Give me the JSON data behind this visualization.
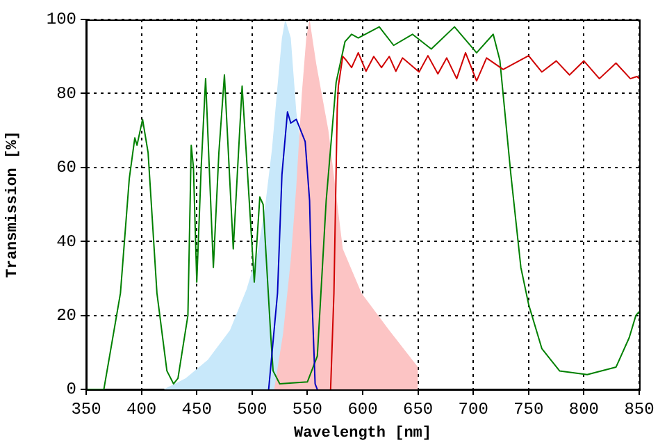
{
  "chart_data": {
    "type": "line",
    "xlabel": "Wavelength [nm]",
    "ylabel": "Transmission [%]",
    "xlim": [
      350,
      850
    ],
    "xticks": [
      350,
      400,
      450,
      500,
      550,
      600,
      650,
      700,
      750,
      800,
      850
    ],
    "ylim": [
      0,
      100
    ],
    "yticks": [
      0,
      20,
      40,
      60,
      80,
      100
    ],
    "grid": true,
    "legend": false,
    "marker": "none",
    "line_style": "solid",
    "series": [
      {
        "type": "area",
        "color": "#c8e8fa",
        "x": [
          420,
          440,
          460,
          480,
          495,
          505,
          512,
          518,
          523,
          527,
          530,
          535,
          540,
          543
        ],
        "values": [
          0,
          3,
          8,
          16,
          27,
          37,
          50,
          65,
          82,
          95,
          100,
          95,
          75,
          68
        ]
      },
      {
        "type": "area",
        "color": "#fcc4c4",
        "x": [
          520,
          528,
          535,
          540,
          545,
          549,
          552,
          558,
          569,
          582,
          599,
          624,
          650
        ],
        "values": [
          0,
          15,
          35,
          55,
          80,
          95,
          100,
          88,
          70,
          38,
          26,
          16,
          6
        ]
      },
      {
        "type": "line",
        "color": "#008000",
        "x": [
          350,
          366,
          381,
          389,
          394,
          396,
          401,
          406,
          414,
          423,
          429,
          433,
          442,
          445,
          447,
          450,
          454,
          458,
          465,
          470,
          475,
          483,
          491,
          502,
          507,
          510,
          517,
          519,
          525,
          550,
          559,
          567,
          576,
          584,
          590,
          596,
          615,
          628,
          645,
          662,
          683,
          703,
          718,
          724,
          734,
          743,
          750,
          762,
          778,
          803,
          829,
          841,
          847,
          850
        ],
        "values": [
          0,
          0,
          26,
          57,
          68,
          66,
          73,
          64,
          26,
          5,
          1.5,
          3,
          20,
          66,
          60,
          29,
          60,
          84,
          33,
          64,
          85,
          38,
          82,
          29,
          52,
          50,
          14,
          5,
          1.5,
          2,
          9,
          51,
          83,
          94,
          96,
          95,
          98,
          93,
          96,
          92,
          98,
          91,
          96,
          89,
          58,
          33,
          23,
          11,
          5,
          4,
          6,
          14,
          20,
          21
        ]
      },
      {
        "type": "line",
        "color": "#0000c0",
        "x": [
          515,
          523,
          527,
          532,
          535,
          540,
          548,
          552,
          554,
          557,
          559
        ],
        "values": [
          0,
          26,
          58,
          75,
          72,
          73,
          67,
          51,
          26,
          1.5,
          0
        ]
      },
      {
        "type": "line",
        "color": "#d00000",
        "x": [
          571,
          574,
          577,
          578,
          582,
          585,
          590,
          596,
          603,
          610,
          617,
          624,
          630,
          636,
          651,
          659,
          668,
          676,
          685,
          693,
          703,
          712,
          727,
          750,
          762,
          775,
          787,
          800,
          814,
          829,
          842,
          848,
          850
        ],
        "values": [
          0,
          26,
          76,
          82,
          90,
          89,
          87,
          91,
          86,
          90,
          87,
          90,
          86,
          89.6,
          85.8,
          90.2,
          85.3,
          89.6,
          84,
          91,
          83.4,
          89.6,
          86.5,
          90.2,
          85.8,
          88.8,
          85,
          88.8,
          84,
          88.2,
          84,
          84.6,
          84
        ]
      }
    ]
  }
}
